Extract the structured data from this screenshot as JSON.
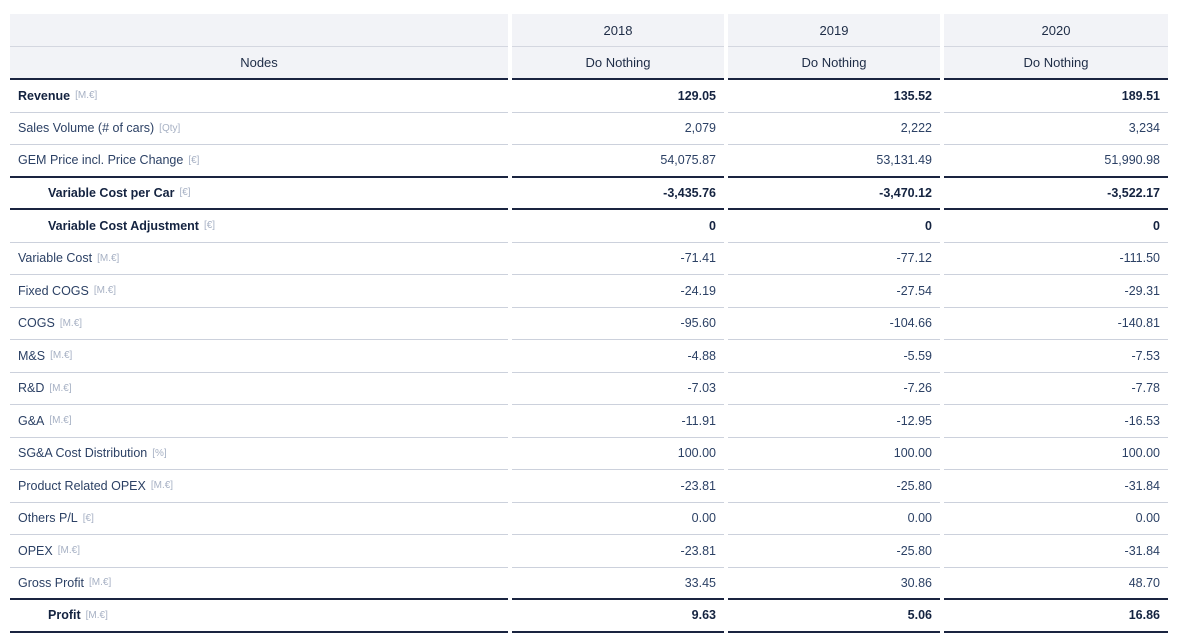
{
  "header": {
    "nodes_label": "Nodes",
    "columns": [
      {
        "year": "2018",
        "scenario": "Do Nothing"
      },
      {
        "year": "2019",
        "scenario": "Do Nothing"
      },
      {
        "year": "2020",
        "scenario": "Do Nothing"
      }
    ]
  },
  "rows": [
    {
      "label": "Revenue",
      "unit": "[M.€]",
      "bold": true,
      "indent": false,
      "border_bottom": "light",
      "values": [
        "129.05",
        "135.52",
        "189.51"
      ]
    },
    {
      "label": "Sales Volume (# of cars)",
      "unit": "[Qty]",
      "bold": false,
      "indent": false,
      "border_bottom": "light",
      "values": [
        "2,079",
        "2,222",
        "3,234"
      ]
    },
    {
      "label": "GEM Price incl. Price Change",
      "unit": "[€]",
      "bold": false,
      "indent": false,
      "border_bottom": "dark",
      "values": [
        "54,075.87",
        "53,131.49",
        "51,990.98"
      ]
    },
    {
      "label": "Variable Cost per Car",
      "unit": "[€]",
      "bold": true,
      "indent": true,
      "border_bottom": "dark",
      "values": [
        "-3,435.76",
        "-3,470.12",
        "-3,522.17"
      ]
    },
    {
      "label": "Variable Cost Adjustment",
      "unit": "[€]",
      "bold": true,
      "indent": true,
      "border_bottom": "light",
      "values": [
        "0",
        "0",
        "0"
      ]
    },
    {
      "label": "Variable Cost",
      "unit": "[M.€]",
      "bold": false,
      "indent": false,
      "border_bottom": "light",
      "values": [
        "-71.41",
        "-77.12",
        "-111.50"
      ]
    },
    {
      "label": "Fixed COGS",
      "unit": "[M.€]",
      "bold": false,
      "indent": false,
      "border_bottom": "light",
      "values": [
        "-24.19",
        "-27.54",
        "-29.31"
      ]
    },
    {
      "label": "COGS",
      "unit": "[M.€]",
      "bold": false,
      "indent": false,
      "border_bottom": "light",
      "values": [
        "-95.60",
        "-104.66",
        "-140.81"
      ]
    },
    {
      "label": "M&S",
      "unit": "[M.€]",
      "bold": false,
      "indent": false,
      "border_bottom": "light",
      "values": [
        "-4.88",
        "-5.59",
        "-7.53"
      ]
    },
    {
      "label": "R&D",
      "unit": "[M.€]",
      "bold": false,
      "indent": false,
      "border_bottom": "light",
      "values": [
        "-7.03",
        "-7.26",
        "-7.78"
      ]
    },
    {
      "label": "G&A",
      "unit": "[M.€]",
      "bold": false,
      "indent": false,
      "border_bottom": "light",
      "values": [
        "-11.91",
        "-12.95",
        "-16.53"
      ]
    },
    {
      "label": "SG&A Cost Distribution",
      "unit": "[%]",
      "bold": false,
      "indent": false,
      "border_bottom": "light",
      "values": [
        "100.00",
        "100.00",
        "100.00"
      ]
    },
    {
      "label": "Product Related OPEX",
      "unit": "[M.€]",
      "bold": false,
      "indent": false,
      "border_bottom": "light",
      "values": [
        "-23.81",
        "-25.80",
        "-31.84"
      ]
    },
    {
      "label": "Others P/L",
      "unit": "[€]",
      "bold": false,
      "indent": false,
      "border_bottom": "light",
      "values": [
        "0.00",
        "0.00",
        "0.00"
      ]
    },
    {
      "label": "OPEX",
      "unit": "[M.€]",
      "bold": false,
      "indent": false,
      "border_bottom": "light",
      "values": [
        "-23.81",
        "-25.80",
        "-31.84"
      ]
    },
    {
      "label": "Gross Profit",
      "unit": "[M.€]",
      "bold": false,
      "indent": false,
      "border_bottom": "dark",
      "values": [
        "33.45",
        "30.86",
        "48.70"
      ]
    },
    {
      "label": "Profit",
      "unit": "[M.€]",
      "bold": true,
      "indent": true,
      "border_bottom": "dark",
      "values": [
        "9.63",
        "5.06",
        "16.86"
      ]
    }
  ],
  "colors": {
    "header_background": "#f2f3f7",
    "border_light": "#ccd1dc",
    "border_dark": "#1a2440",
    "text_regular": "#2c4165",
    "text_bold": "#142340",
    "text_unit": "#a7b1c4"
  }
}
